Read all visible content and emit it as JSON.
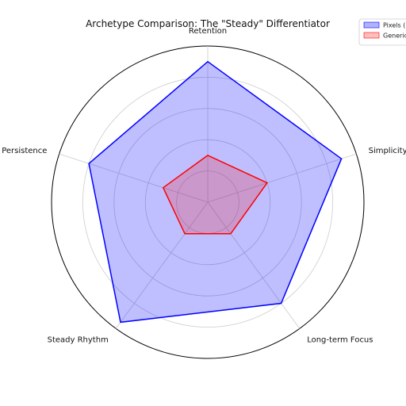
{
  "chart_data": {
    "type": "radar",
    "title": "Archetype Comparison: The \"Steady\" Differentiator",
    "axes": [
      "Retention",
      "Simplicity",
      "Long-term Focus",
      "Steady Rhythm",
      "User Persistence"
    ],
    "rmax": 10,
    "grid": true,
    "grid_rings": [
      2,
      4,
      6,
      8,
      10
    ],
    "legend_position": "top-right",
    "series": [
      {
        "name": "Pixels (\"",
        "values": [
          9,
          9,
          8,
          9.5,
          8
        ],
        "color": "#0000ff",
        "fill": "#0000ff",
        "fill_opacity": 0.25
      },
      {
        "name": "Generic",
        "values": [
          3,
          4,
          2.5,
          2.5,
          3
        ],
        "color": "#ff0000",
        "fill": "#ff0000",
        "fill_opacity": 0.2
      }
    ]
  }
}
